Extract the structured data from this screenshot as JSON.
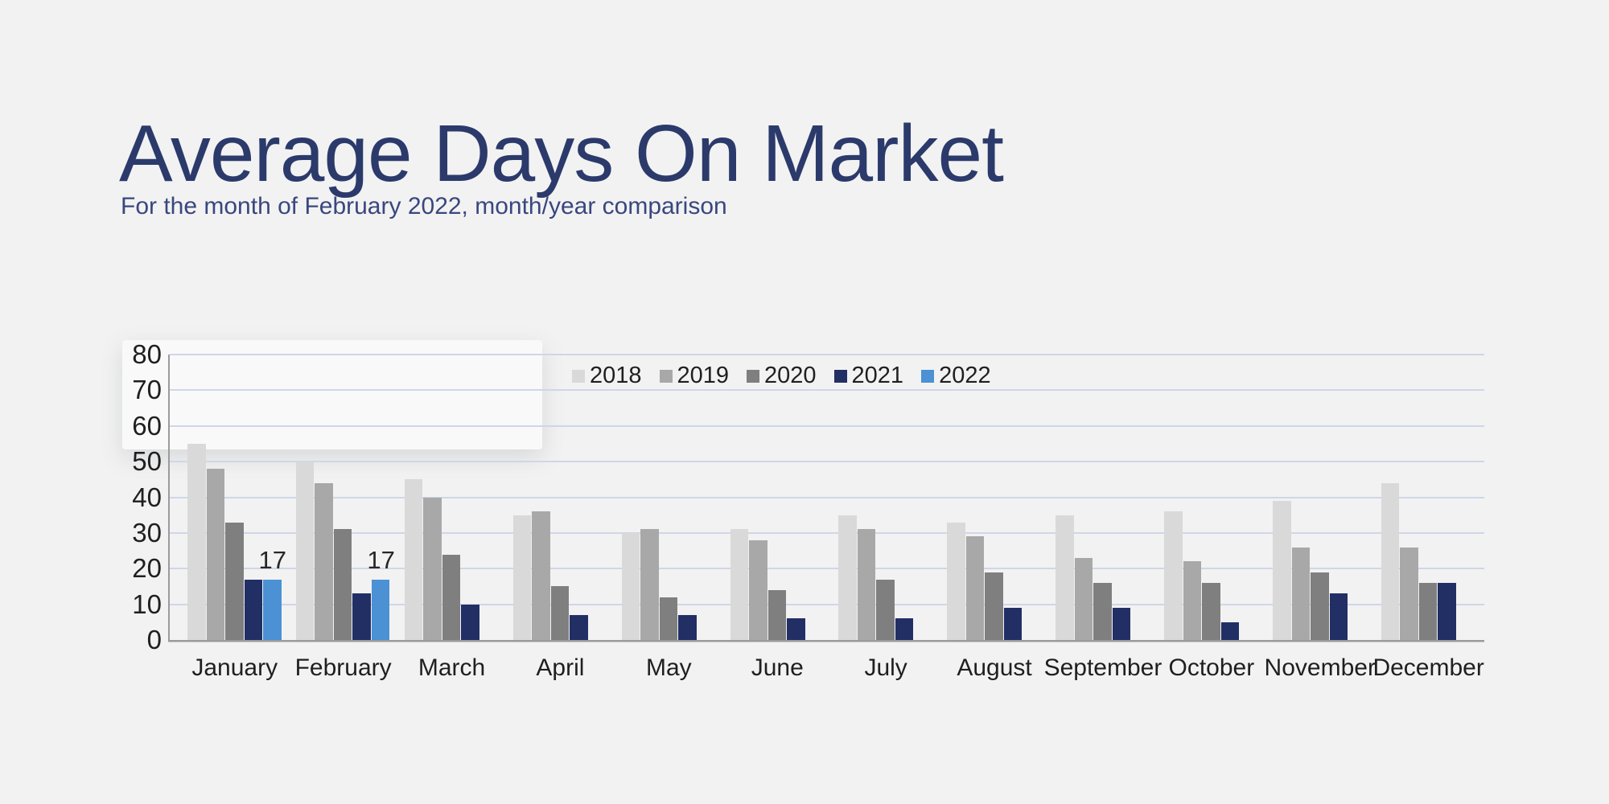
{
  "page": {
    "background_color": "#f2f2f2"
  },
  "header": {
    "title": "Average Days On Market",
    "subtitle": "For the month of February 2022, month/year comparison",
    "title_color": "#2b3a6b"
  },
  "chart_data": {
    "type": "bar",
    "title": "Average Days On Market",
    "xlabel": "",
    "ylabel": "",
    "categories": [
      "January",
      "February",
      "March",
      "April",
      "May",
      "June",
      "July",
      "August",
      "September",
      "October",
      "November",
      "December"
    ],
    "series": [
      {
        "name": "2018",
        "color": "#d9d9d9",
        "values": [
          55,
          50,
          45,
          35,
          30,
          31,
          35,
          33,
          35,
          36,
          39,
          44
        ]
      },
      {
        "name": "2019",
        "color": "#a8a8a8",
        "values": [
          48,
          44,
          40,
          36,
          31,
          28,
          31,
          29,
          23,
          22,
          26,
          26
        ]
      },
      {
        "name": "2020",
        "color": "#7f7f7f",
        "values": [
          33,
          31,
          24,
          15,
          12,
          14,
          17,
          19,
          16,
          16,
          19,
          16
        ]
      },
      {
        "name": "2021",
        "color": "#222f65",
        "values": [
          17,
          13,
          10,
          7,
          7,
          6,
          6,
          9,
          9,
          5,
          13,
          16
        ]
      },
      {
        "name": "2022",
        "color": "#4b91d4",
        "values": [
          17,
          17,
          null,
          null,
          null,
          null,
          null,
          null,
          null,
          null,
          null,
          null
        ],
        "data_labels": true
      }
    ],
    "ylim": [
      0,
      80
    ],
    "yticks": [
      0,
      10,
      20,
      30,
      40,
      50,
      60,
      70,
      80
    ],
    "grid": true,
    "gridline_color": "#cfd6e8",
    "axis_color": "#9b9b9b",
    "legend_position": "top-center",
    "legend_entries": [
      "2018",
      "2019",
      "2020",
      "2021",
      "2022"
    ]
  }
}
